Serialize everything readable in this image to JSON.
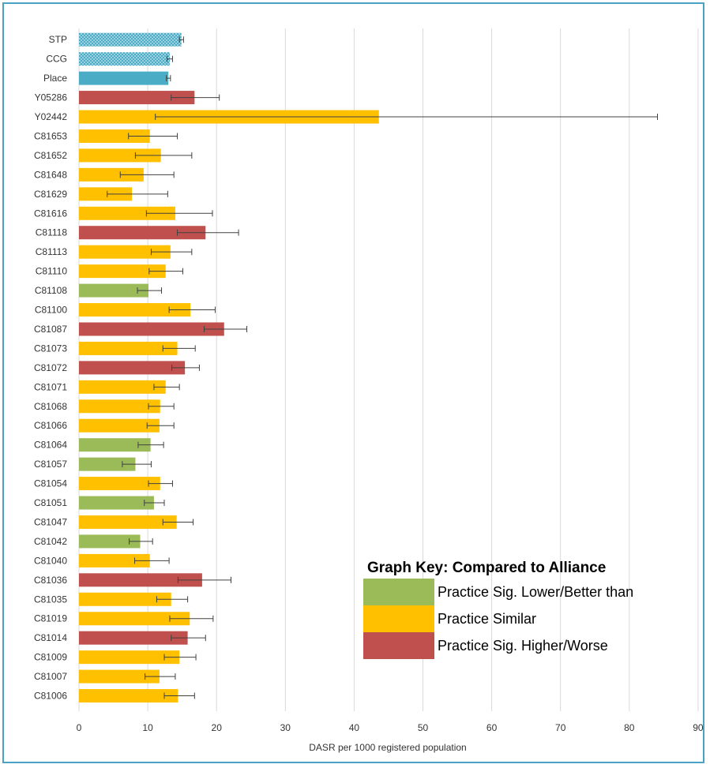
{
  "colors": {
    "border": "#4aa3c3",
    "benchmark": "#4bacc6",
    "lower": "#9bbb59",
    "similar": "#ffc000",
    "higher": "#c0504d",
    "grid": "#d9d9d9",
    "errorbar": "#404040"
  },
  "chart_data": {
    "type": "bar",
    "orientation": "horizontal",
    "xlabel": "DASR per 1000 registered population",
    "xlim": [
      0,
      90
    ],
    "xticks": [
      "0",
      "10",
      "20",
      "30",
      "40",
      "50",
      "60",
      "70",
      "80",
      "90"
    ],
    "grid": "vertical",
    "categories": [
      "STP",
      "CCG",
      "Place",
      "Y05286",
      "Y02442",
      "C81653",
      "C81652",
      "C81648",
      "C81629",
      "C81616",
      "C81118",
      "C81113",
      "C81110",
      "C81108",
      "C81100",
      "C81087",
      "C81073",
      "C81072",
      "C81071",
      "C81068",
      "C81066",
      "C81064",
      "C81057",
      "C81054",
      "C81051",
      "C81047",
      "C81042",
      "C81040",
      "C81036",
      "C81035",
      "C81019",
      "C81014",
      "C81009",
      "C81007",
      "C81006"
    ],
    "values": [
      14.9,
      13.2,
      13.0,
      16.8,
      43.6,
      10.3,
      11.9,
      9.4,
      7.7,
      14.0,
      18.4,
      13.3,
      12.6,
      10.1,
      16.2,
      21.1,
      14.3,
      15.4,
      12.6,
      11.8,
      11.7,
      10.4,
      8.2,
      11.8,
      10.9,
      14.2,
      8.9,
      10.3,
      17.9,
      13.4,
      16.1,
      15.8,
      14.6,
      11.7,
      14.4
    ],
    "lower_ci": [
      14.6,
      12.8,
      12.7,
      13.4,
      11.1,
      7.2,
      8.2,
      6.0,
      4.1,
      9.8,
      14.3,
      10.5,
      10.2,
      8.5,
      13.1,
      18.2,
      12.2,
      13.5,
      10.9,
      10.1,
      9.9,
      8.6,
      6.3,
      10.1,
      9.5,
      12.2,
      7.3,
      8.1,
      14.4,
      11.3,
      13.2,
      13.4,
      12.4,
      9.6,
      12.4
    ],
    "upper_ci": [
      15.2,
      13.6,
      13.3,
      20.4,
      84.1,
      14.3,
      16.4,
      13.8,
      12.9,
      19.4,
      23.2,
      16.4,
      15.1,
      12.0,
      19.8,
      24.4,
      16.9,
      17.5,
      14.6,
      13.8,
      13.8,
      12.3,
      10.5,
      13.6,
      12.4,
      16.6,
      10.7,
      13.1,
      22.1,
      15.8,
      19.5,
      18.4,
      17.0,
      14.0,
      16.8
    ],
    "status": [
      "benchmark-dotted",
      "benchmark-dotted",
      "benchmark",
      "higher",
      "similar",
      "similar",
      "similar",
      "similar",
      "similar",
      "similar",
      "higher",
      "similar",
      "similar",
      "lower",
      "similar",
      "higher",
      "similar",
      "higher",
      "similar",
      "similar",
      "similar",
      "lower",
      "lower",
      "similar",
      "lower",
      "similar",
      "lower",
      "similar",
      "higher",
      "similar",
      "similar",
      "higher",
      "similar",
      "similar",
      "similar"
    ]
  },
  "key": {
    "title": "Graph Key: Compared to Alliance",
    "items": [
      {
        "label": "Practice Sig. Lower/Better than",
        "color": "#9bbb59"
      },
      {
        "label": "Practice Similar",
        "color": "#ffc000"
      },
      {
        "label": "Practice Sig. Higher/Worse",
        "color": "#c0504d"
      }
    ]
  }
}
